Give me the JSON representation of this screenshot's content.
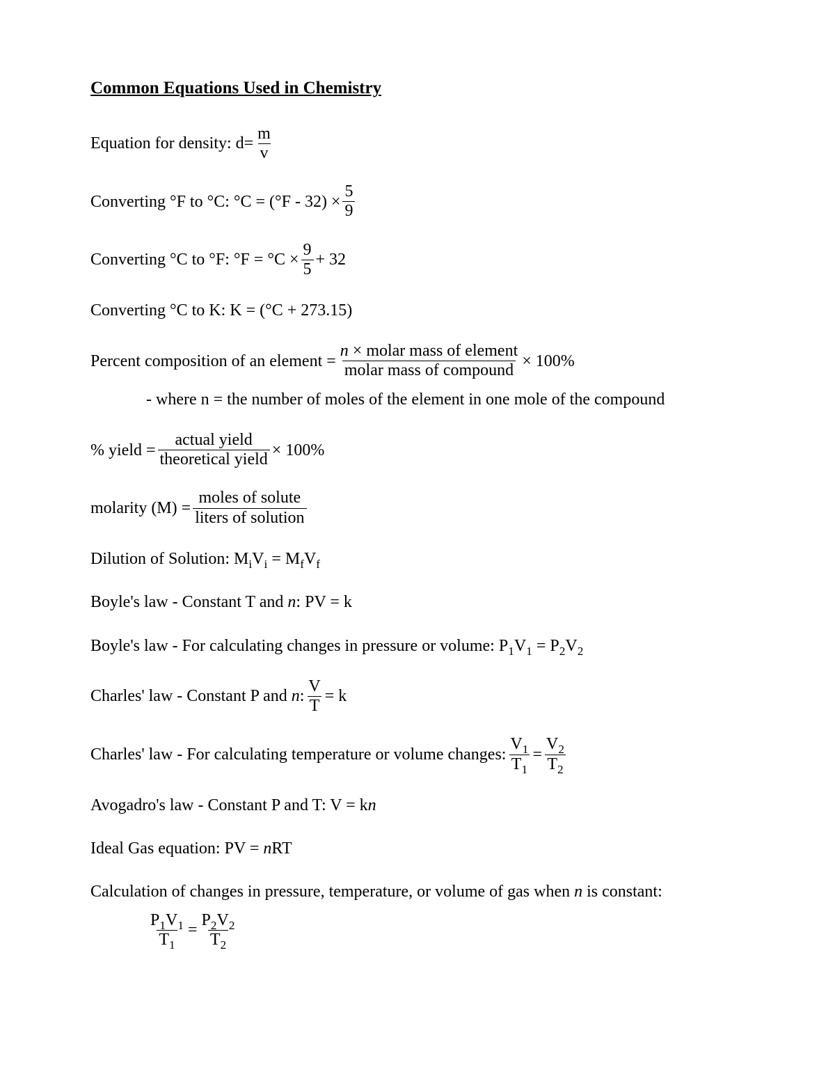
{
  "title": "Common Equations Used in Chemistry",
  "density": {
    "label": "Equation for density:  d=",
    "num": "m",
    "den": "v"
  },
  "f_to_c": {
    "label": "Converting °F to °C:  °C = (°F - 32)  ×  ",
    "num": "5",
    "den": "9"
  },
  "c_to_f": {
    "pre": "Converting °C to °F:  °F = °C × ",
    "num": "9",
    "den": "5",
    "post": "  + 32"
  },
  "c_to_k": "Converting °C to K:  K = (°C + 273.15)",
  "percent_comp": {
    "pre": "Percent composition of an element = ",
    "num_pre": "n",
    "num_post": " × molar mass of element",
    "den": "molar mass of compound",
    "post": "  ×  100%",
    "note": "- where n  = the number of moles of the element in one mole of the compound"
  },
  "percent_yield": {
    "pre": "% yield = ",
    "num": "actual yield",
    "den": "theoretical yield",
    "post": "  ×  100%"
  },
  "molarity": {
    "pre": "molarity (M) = ",
    "num": "moles of solute",
    "den": "liters of solution"
  },
  "dilution": {
    "pre": "Dilution of Solution:  M",
    "iv": "i",
    "mid1": "V",
    "mid2": " = M",
    "fv": "f",
    "mid3": "V"
  },
  "boyle_const": {
    "pre": "Boyle's law - Constant T and ",
    "n": "n",
    "post": ":  PV = k"
  },
  "boyle_change": {
    "pre": "Boyle's law - For calculating changes in pressure or volume:  P",
    "s1": "1",
    "mid1": "V",
    "mid2": " = P",
    "s2": "2",
    "mid3": "V"
  },
  "charles_const": {
    "pre": "Charles' law - Constant P and ",
    "n": "n",
    "mid": ":  ",
    "num": "V",
    "den": "T",
    "post": " = k"
  },
  "charles_change": {
    "pre": "Charles' law - For calculating temperature or volume changes:  ",
    "num1": "V",
    "s1": "1",
    "den1": "T",
    "eq": " = ",
    "num2": "V",
    "s2": "2",
    "den2": "T"
  },
  "avogadro": {
    "pre": "Avogadro's law - Constant P and T:  V = k",
    "n": "n"
  },
  "ideal_gas": {
    "pre": "Ideal Gas equation:  PV = ",
    "n": "n",
    "post": "RT"
  },
  "combined": {
    "pre": "Calculation of  changes in pressure, temperature, or volume of gas when ",
    "n": "n",
    "post": " is constant:",
    "lhs_num_p": "P",
    "lhs_s": "1",
    "lhs_num_v": "V",
    "lhs_den": "T",
    "eq": "  = ",
    "rhs_num_p": "P",
    "rhs_s": "2",
    "rhs_num_v": "V",
    "rhs_den": "T"
  }
}
